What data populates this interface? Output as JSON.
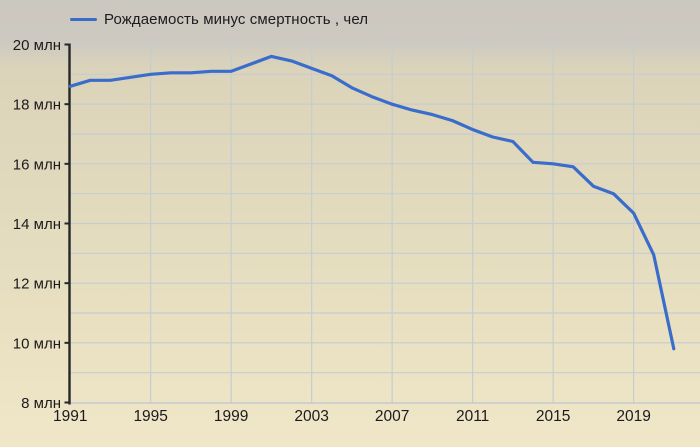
{
  "legend": {
    "label": "Рождаемость минус смертность , чел"
  },
  "chart_data": {
    "type": "line",
    "title": "",
    "xlabel": "",
    "ylabel": "",
    "y_unit": "млн",
    "series": [
      {
        "name": "Рождаемость минус смертность , чел",
        "color": "#3a6ccc",
        "x": [
          1991,
          1992,
          1993,
          1994,
          1995,
          1996,
          1997,
          1998,
          1999,
          2000,
          2001,
          2002,
          2003,
          2004,
          2005,
          2006,
          2007,
          2008,
          2009,
          2010,
          2011,
          2012,
          2013,
          2014,
          2015,
          2016,
          2017,
          2018,
          2019,
          2020,
          2021
        ],
        "values": [
          18.6,
          18.8,
          18.8,
          18.9,
          19.0,
          19.05,
          19.05,
          19.1,
          19.1,
          19.35,
          19.6,
          19.45,
          19.2,
          18.95,
          18.55,
          18.25,
          18.0,
          17.8,
          17.65,
          17.45,
          17.15,
          16.9,
          16.75,
          16.05,
          16.0,
          15.9,
          15.25,
          15.0,
          14.35,
          12.95,
          9.8
        ]
      }
    ],
    "x_tick_labels": [
      "1991",
      "1995",
      "1999",
      "2003",
      "2007",
      "2011",
      "2015",
      "2019"
    ],
    "x_tick_years": [
      1991,
      1995,
      1999,
      2003,
      2007,
      2011,
      2015,
      2019
    ],
    "y_tick_labels": [
      "20 млн",
      "18 млн",
      "16 млн",
      "14 млн",
      "12 млн",
      "10 млн",
      "8 млн"
    ],
    "y_tick_values": [
      20,
      18,
      16,
      14,
      12,
      10,
      8
    ],
    "y_grid_step": 1,
    "ylim": [
      8,
      20
    ],
    "xlim": [
      1991,
      2022.3
    ],
    "grid": true,
    "legend_position": "top-left"
  },
  "colors": {
    "series_line": "#3a6ccc",
    "grid": "#c7ccd2",
    "y_axis": "#26262a",
    "x_axis": "#c3c9cd",
    "text": "#1b1b1d",
    "background_top": "#cbc8c0",
    "background_bottom": "#efe7c7"
  }
}
